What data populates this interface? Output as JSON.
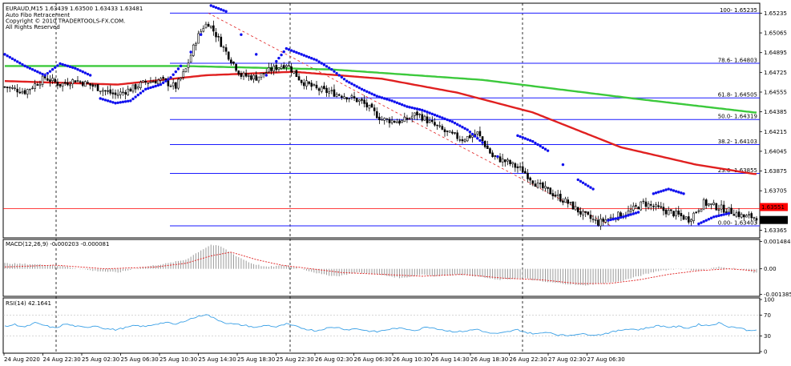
{
  "chart_data": [
    {
      "type": "candlestick",
      "title": "EURAUD,M15  1.63439 1.63500 1.63433 1.63481",
      "indicator_labels": [
        "Auto Fibo Retracement",
        "Copyright © 2010 TRADERTOOLS-FX.COM.",
        "All Rights Reserved"
      ],
      "x_tick_labels": [
        "24 Aug 2020",
        "24 Aug 22:30",
        "25 Aug 02:30",
        "25 Aug 06:30",
        "25 Aug 10:30",
        "25 Aug 14:30",
        "25 Aug 18:30",
        "25 Aug 22:30",
        "26 Aug 02:30",
        "26 Aug 06:30",
        "26 Aug 10:30",
        "26 Aug 14:30",
        "26 Aug 18:30",
        "26 Aug 22:30",
        "27 Aug 02:30",
        "27 Aug 06:30"
      ],
      "y_tick_labels": [
        "1.65235",
        "1.65065",
        "1.64895",
        "1.64725",
        "1.64555",
        "1.64385",
        "1.64215",
        "1.64045",
        "1.63875",
        "1.63705",
        "1.63365"
      ],
      "ylim": [
        1.6332,
        1.653
      ],
      "close_anchors": [
        [
          0,
          1.646
        ],
        [
          8,
          1.6456
        ],
        [
          16,
          1.6468
        ],
        [
          22,
          1.6462
        ],
        [
          28,
          1.6466
        ],
        [
          36,
          1.646
        ],
        [
          44,
          1.6453
        ],
        [
          50,
          1.6458
        ],
        [
          56,
          1.6464
        ],
        [
          62,
          1.6466
        ],
        [
          68,
          1.646
        ],
        [
          72,
          1.6475
        ],
        [
          76,
          1.65
        ],
        [
          79,
          1.6512
        ],
        [
          81,
          1.6515
        ],
        [
          84,
          1.6505
        ],
        [
          88,
          1.649
        ],
        [
          94,
          1.647
        ],
        [
          100,
          1.6468
        ],
        [
          106,
          1.6475
        ],
        [
          112,
          1.648
        ],
        [
          118,
          1.6465
        ],
        [
          124,
          1.6458
        ],
        [
          130,
          1.6455
        ],
        [
          136,
          1.6452
        ],
        [
          142,
          1.6447
        ],
        [
          150,
          1.6432
        ],
        [
          158,
          1.643
        ],
        [
          164,
          1.6437
        ],
        [
          170,
          1.6428
        ],
        [
          176,
          1.642
        ],
        [
          182,
          1.6415
        ],
        [
          188,
          1.642
        ],
        [
          194,
          1.64
        ],
        [
          200,
          1.6395
        ],
        [
          206,
          1.6388
        ],
        [
          212,
          1.6375
        ],
        [
          218,
          1.6368
        ],
        [
          224,
          1.636
        ],
        [
          230,
          1.635
        ],
        [
          236,
          1.6343
        ],
        [
          242,
          1.6348
        ],
        [
          248,
          1.6352
        ],
        [
          254,
          1.636
        ],
        [
          260,
          1.6355
        ],
        [
          266,
          1.6351
        ],
        [
          272,
          1.6346
        ],
        [
          278,
          1.636
        ],
        [
          284,
          1.6356
        ],
        [
          290,
          1.6352
        ],
        [
          294,
          1.6348
        ],
        [
          298,
          1.63481
        ]
      ],
      "ma_green": [
        [
          0,
          1.6478
        ],
        [
          70,
          1.6478
        ],
        [
          130,
          1.6475
        ],
        [
          190,
          1.6466
        ],
        [
          250,
          1.645
        ],
        [
          298,
          1.6438
        ]
      ],
      "ma_red": [
        [
          0,
          1.6465
        ],
        [
          45,
          1.6462
        ],
        [
          80,
          1.647
        ],
        [
          115,
          1.6473
        ],
        [
          150,
          1.6467
        ],
        [
          180,
          1.6455
        ],
        [
          210,
          1.6438
        ],
        [
          245,
          1.6408
        ],
        [
          275,
          1.6393
        ],
        [
          298,
          1.6385
        ]
      ],
      "sar_points": [
        [
          0,
          1.6488
        ],
        [
          8,
          1.6478
        ],
        [
          16,
          1.647
        ],
        [
          22,
          1.648
        ],
        [
          28,
          1.6476
        ],
        [
          34,
          1.647
        ],
        [
          38,
          1.645
        ],
        [
          44,
          1.6446
        ],
        [
          50,
          1.6448
        ],
        [
          56,
          1.6458
        ],
        [
          62,
          1.6462
        ],
        [
          66,
          1.6468
        ],
        [
          70,
          1.6478
        ],
        [
          74,
          1.649
        ],
        [
          78,
          1.6505
        ],
        [
          82,
          1.653
        ],
        [
          88,
          1.6525
        ],
        [
          94,
          1.6505
        ],
        [
          100,
          1.6488
        ],
        [
          104,
          1.647
        ],
        [
          108,
          1.6482
        ],
        [
          112,
          1.6493
        ],
        [
          118,
          1.6488
        ],
        [
          124,
          1.6483
        ],
        [
          130,
          1.6475
        ],
        [
          136,
          1.6465
        ],
        [
          142,
          1.6458
        ],
        [
          148,
          1.6452
        ],
        [
          154,
          1.6448
        ],
        [
          160,
          1.6443
        ],
        [
          166,
          1.644
        ],
        [
          172,
          1.6435
        ],
        [
          178,
          1.643
        ],
        [
          184,
          1.6423
        ],
        [
          190,
          1.6412
        ],
        [
          196,
          1.64
        ],
        [
          204,
          1.6418
        ],
        [
          210,
          1.6413
        ],
        [
          216,
          1.6405
        ],
        [
          222,
          1.6393
        ],
        [
          228,
          1.638
        ],
        [
          234,
          1.6372
        ],
        [
          240,
          1.6345
        ],
        [
          246,
          1.6348
        ],
        [
          252,
          1.6352
        ],
        [
          258,
          1.6368
        ],
        [
          264,
          1.6372
        ],
        [
          270,
          1.6368
        ],
        [
          276,
          1.6342
        ],
        [
          282,
          1.6348
        ],
        [
          288,
          1.6351
        ],
        [
          294,
          1.6368
        ]
      ],
      "fibo_levels": [
        {
          "label": "100- 1.65235",
          "value": 1.65235
        },
        {
          "label": "78.6- 1.64803",
          "value": 1.64803
        },
        {
          "label": "61.8- 1.64505",
          "value": 1.64505
        },
        {
          "label": "50.0- 1.64319",
          "value": 1.64319
        },
        {
          "label": "38.2- 1.64103",
          "value": 1.64103
        },
        {
          "label": "23.6- 1.63855",
          "value": 1.63855
        },
        {
          "label": "0.00- 1.63403",
          "value": 1.63403
        }
      ],
      "fibo_trendline": [
        [
          81,
          1.65235
        ],
        [
          241,
          1.63403
        ]
      ],
      "horizontal_line": 1.63551,
      "price_boxes": [
        {
          "label": "1.63551",
          "value": 1.63551,
          "color": "#ff0000"
        },
        {
          "label": "1.63481",
          "value": 1.63481,
          "color": "#000000"
        }
      ],
      "colors": {
        "ma_green": "#3cc93c",
        "ma_red": "#e02020",
        "sar": "#1010ee",
        "fibo": "#1a1aff",
        "hline": "#ff0000"
      }
    },
    {
      "type": "histogram",
      "title": "MACD(12,26,9) -0.000203 -0.000081",
      "y_tick_labels": [
        "0.001484",
        "0.00",
        "-0.001385"
      ],
      "ylim": [
        -0.0014,
        0.0015
      ],
      "bars": [
        [
          0,
          0.0003
        ],
        [
          20,
          0.0002
        ],
        [
          35,
          -0.0001
        ],
        [
          45,
          -0.0002
        ],
        [
          55,
          0.0001
        ],
        [
          65,
          0.0003
        ],
        [
          72,
          0.0005
        ],
        [
          78,
          0.001
        ],
        [
          82,
          0.0013
        ],
        [
          86,
          0.0012
        ],
        [
          92,
          0.0007
        ],
        [
          98,
          0.0003
        ],
        [
          104,
          0.0001
        ],
        [
          112,
          0.0002
        ],
        [
          118,
          0.0
        ],
        [
          126,
          -0.0003
        ],
        [
          132,
          -0.0004
        ],
        [
          140,
          -0.0002
        ],
        [
          148,
          -0.0003
        ],
        [
          158,
          -0.0005
        ],
        [
          166,
          -0.0003
        ],
        [
          172,
          -0.0004
        ],
        [
          180,
          -0.0003
        ],
        [
          188,
          -0.0004
        ],
        [
          196,
          -0.0006
        ],
        [
          206,
          -0.0005
        ],
        [
          214,
          -0.0007
        ],
        [
          222,
          -0.0008
        ],
        [
          230,
          -0.0009
        ],
        [
          236,
          -0.0008
        ],
        [
          244,
          -0.0007
        ],
        [
          252,
          -0.0004
        ],
        [
          260,
          -0.0001
        ],
        [
          268,
          0.0
        ],
        [
          276,
          -0.0001
        ],
        [
          284,
          0.0001
        ],
        [
          292,
          0.0
        ],
        [
          298,
          -0.0002
        ]
      ],
      "signal": [
        [
          0,
          0.0001
        ],
        [
          20,
          0.0002
        ],
        [
          40,
          0.0
        ],
        [
          60,
          0.0001
        ],
        [
          72,
          0.0003
        ],
        [
          82,
          0.0007
        ],
        [
          90,
          0.0009
        ],
        [
          100,
          0.0005
        ],
        [
          110,
          0.0002
        ],
        [
          122,
          0.0
        ],
        [
          134,
          -0.0002
        ],
        [
          150,
          -0.0003
        ],
        [
          166,
          -0.0004
        ],
        [
          182,
          -0.0003
        ],
        [
          198,
          -0.0005
        ],
        [
          214,
          -0.0006
        ],
        [
          228,
          -0.0008
        ],
        [
          240,
          -0.0008
        ],
        [
          252,
          -0.0006
        ],
        [
          264,
          -0.0003
        ],
        [
          276,
          -0.0001
        ],
        [
          288,
          0.0
        ],
        [
          298,
          -0.0001
        ]
      ],
      "colors": {
        "bars": "#9a9a9a",
        "signal": "#e02020"
      }
    },
    {
      "type": "line",
      "title": "RSI(14) 42.1641",
      "y_tick_labels": [
        "100",
        "70",
        "30",
        "0"
      ],
      "ylim": [
        0,
        100
      ],
      "levels": [
        70,
        30
      ],
      "values": [
        [
          0,
          48
        ],
        [
          4,
          52
        ],
        [
          8,
          47
        ],
        [
          12,
          55
        ],
        [
          16,
          50
        ],
        [
          20,
          45
        ],
        [
          24,
          53
        ],
        [
          28,
          49
        ],
        [
          32,
          46
        ],
        [
          36,
          50
        ],
        [
          40,
          44
        ],
        [
          44,
          42
        ],
        [
          48,
          46
        ],
        [
          52,
          50
        ],
        [
          56,
          48
        ],
        [
          60,
          53
        ],
        [
          64,
          56
        ],
        [
          68,
          52
        ],
        [
          72,
          60
        ],
        [
          76,
          66
        ],
        [
          80,
          72
        ],
        [
          84,
          62
        ],
        [
          88,
          55
        ],
        [
          92,
          52
        ],
        [
          96,
          50
        ],
        [
          100,
          46
        ],
        [
          104,
          51
        ],
        [
          108,
          47
        ],
        [
          112,
          53
        ],
        [
          116,
          48
        ],
        [
          120,
          43
        ],
        [
          124,
          40
        ],
        [
          128,
          45
        ],
        [
          132,
          47
        ],
        [
          136,
          42
        ],
        [
          140,
          44
        ],
        [
          144,
          40
        ],
        [
          148,
          38
        ],
        [
          152,
          42
        ],
        [
          156,
          45
        ],
        [
          160,
          43
        ],
        [
          164,
          41
        ],
        [
          168,
          48
        ],
        [
          172,
          44
        ],
        [
          176,
          40
        ],
        [
          180,
          38
        ],
        [
          184,
          40
        ],
        [
          188,
          43
        ],
        [
          192,
          36
        ],
        [
          196,
          34
        ],
        [
          200,
          38
        ],
        [
          204,
          42
        ],
        [
          208,
          36
        ],
        [
          212,
          34
        ],
        [
          216,
          38
        ],
        [
          220,
          32
        ],
        [
          224,
          31
        ],
        [
          228,
          34
        ],
        [
          232,
          33
        ],
        [
          236,
          32
        ],
        [
          240,
          36
        ],
        [
          244,
          40
        ],
        [
          248,
          44
        ],
        [
          252,
          42
        ],
        [
          256,
          46
        ],
        [
          260,
          50
        ],
        [
          264,
          47
        ],
        [
          268,
          48
        ],
        [
          272,
          45
        ],
        [
          276,
          52
        ],
        [
          280,
          50
        ],
        [
          284,
          55
        ],
        [
          288,
          48
        ],
        [
          292,
          46
        ],
        [
          296,
          40
        ],
        [
          298,
          42
        ]
      ],
      "colors": {
        "line": "#3aa0e6"
      }
    }
  ]
}
